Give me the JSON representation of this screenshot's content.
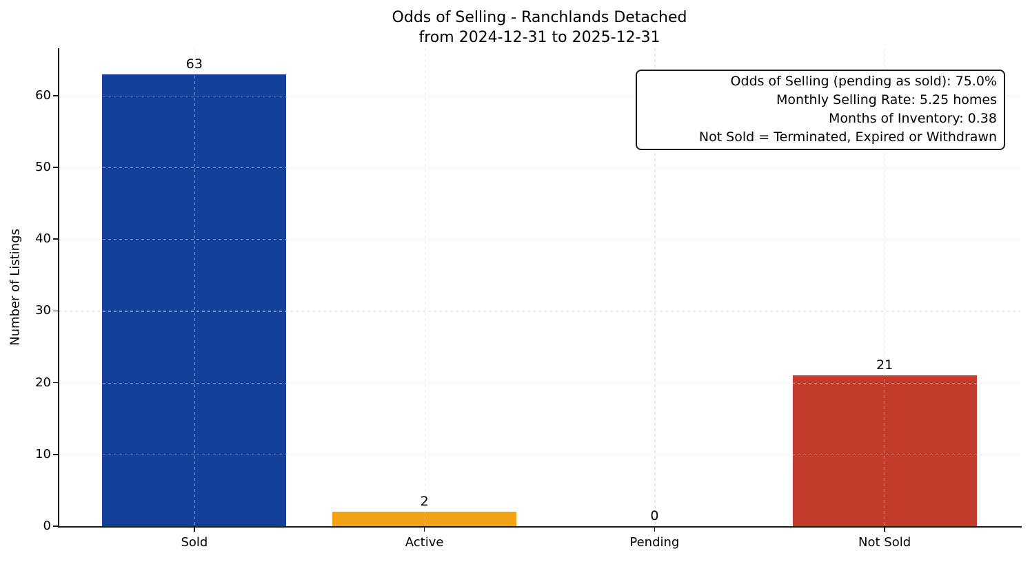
{
  "chart_data": {
    "type": "bar",
    "title": "Odds of Selling - Ranchlands Detached",
    "subtitle": "from 2024-12-31 to 2025-12-31",
    "ylabel": "Number of Listings",
    "xlabel": "",
    "categories": [
      "Sold",
      "Active",
      "Pending",
      "Not Sold"
    ],
    "values": [
      63,
      2,
      0,
      21
    ],
    "value_labels": [
      "63",
      "2",
      "0",
      "21"
    ],
    "bar_colors": [
      "#12409A",
      "#F2A315",
      null,
      "#C23B2B"
    ],
    "yticks": [
      0,
      10,
      20,
      30,
      40,
      50,
      60
    ],
    "ylim": [
      0,
      66.6
    ],
    "grid": "dashed gridlines on both axes, drawn above bars",
    "legend_position": "none",
    "annotation": {
      "lines": [
        "Odds of Selling (pending as sold): 75.0%",
        "Monthly Selling Rate: 5.25 homes",
        "Months of Inventory: 0.38",
        "Not Sold = Terminated, Expired or Withdrawn"
      ]
    }
  }
}
